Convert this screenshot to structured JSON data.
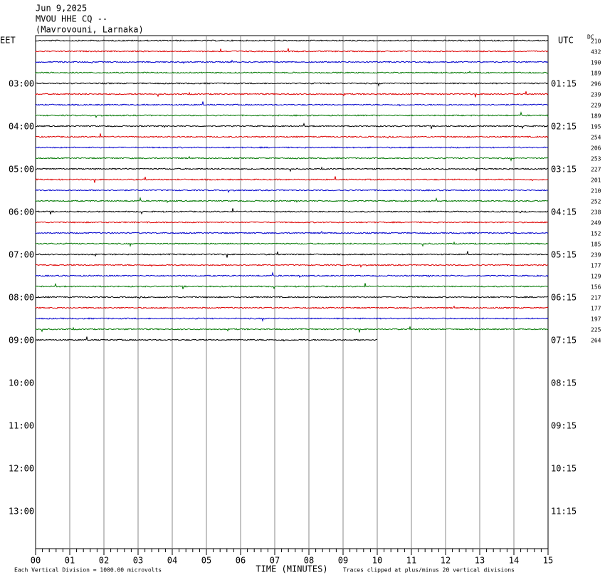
{
  "header": {
    "date": "Jun 9,2025",
    "station": "MVOU HHE CQ --",
    "location": "(Mavrovouni, Larnaka)"
  },
  "left_axis_label": "EET",
  "right_axis_label": "UTC",
  "dc_label": "DC",
  "left_times": [
    "03:00",
    "04:00",
    "05:00",
    "06:00",
    "07:00",
    "08:00",
    "09:00",
    "10:00",
    "11:00",
    "12:00",
    "13:00"
  ],
  "right_times": [
    "01:15",
    "02:15",
    "03:15",
    "04:15",
    "05:15",
    "06:15",
    "07:15",
    "08:15",
    "09:15",
    "10:15",
    "11:15"
  ],
  "x_ticks": [
    "00",
    "01",
    "02",
    "03",
    "04",
    "05",
    "06",
    "07",
    "08",
    "09",
    "10",
    "11",
    "12",
    "13",
    "14",
    "15"
  ],
  "x_label": "TIME (MINUTES)",
  "footer_left": "Each Vertical Division = 1000.00 microvolts",
  "footer_right": "Traces clipped at plus/minus 20 vertical divisions",
  "dc_offsets": [
    210,
    432,
    190,
    189,
    296,
    239,
    229,
    189,
    195,
    254,
    206,
    253,
    227,
    201,
    210,
    252,
    238,
    249,
    152,
    185,
    239,
    177,
    129,
    156,
    217,
    177,
    197,
    225,
    264
  ]
}
